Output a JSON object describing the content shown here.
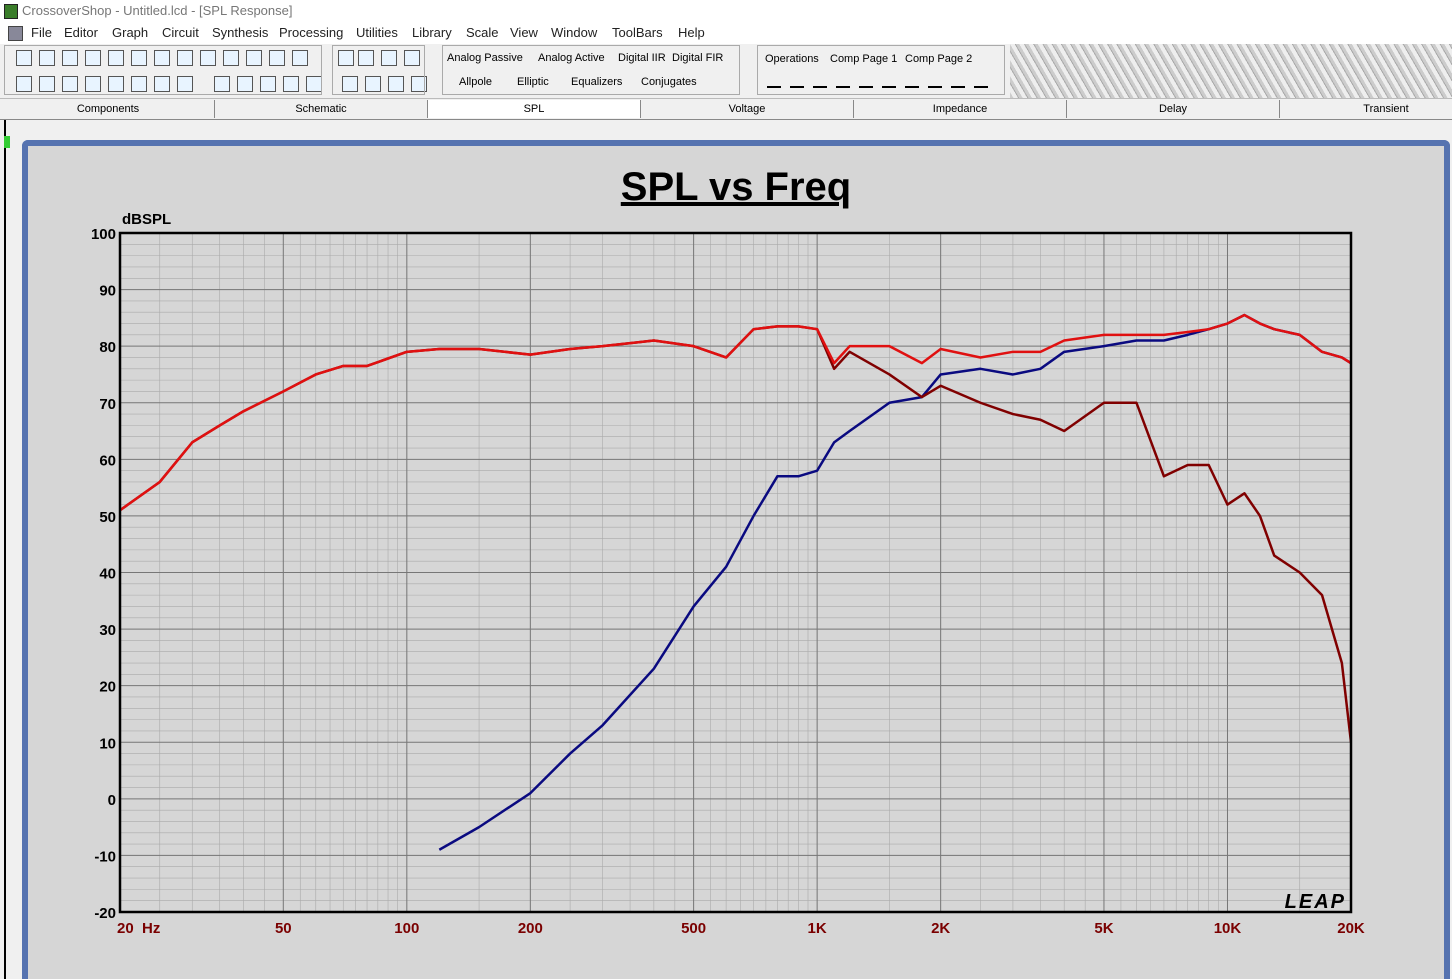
{
  "window": {
    "title": "CrossoverShop - Untitled.lcd - [SPL Response]",
    "menu": [
      "File",
      "Editor",
      "Graph",
      "Circuit",
      "Synthesis",
      "Processing",
      "Utilities",
      "Library",
      "Scale",
      "View",
      "Window",
      "ToolBars",
      "Help"
    ],
    "toolbar_tabs_top": [
      "Analog Passive",
      "Analog Active",
      "Digital IIR",
      "Digital FIR"
    ],
    "toolbar_tabs_bottom": [
      "Allpole",
      "Elliptic",
      "Equalizers",
      "Conjugates"
    ],
    "comp_tabs": [
      "Operations",
      "Comp Page 1",
      "Comp Page 2"
    ],
    "view_tabs": [
      "Components",
      "Schematic",
      "SPL",
      "Voltage",
      "Impedance",
      "Delay",
      "Transient"
    ]
  },
  "chart_data": {
    "type": "line",
    "title": "SPL vs Freq",
    "y_label": "dBSPL",
    "logo": "LEAP",
    "x_log": true,
    "grid": true,
    "x": [
      20,
      25,
      30,
      35,
      40,
      50,
      60,
      70,
      80,
      100,
      120,
      150,
      200,
      250,
      300,
      400,
      500,
      600,
      700,
      800,
      900,
      1000,
      1100,
      1200,
      1500,
      1800,
      2000,
      2500,
      3000,
      3500,
      4000,
      5000,
      6000,
      7000,
      8000,
      9000,
      10000,
      11000,
      12000,
      13000,
      15000,
      17000,
      19000,
      20000
    ],
    "series": [
      {
        "color": "#0a0a80",
        "values": [
          null,
          null,
          null,
          null,
          null,
          null,
          null,
          null,
          null,
          null,
          -9,
          -5,
          1,
          8,
          13,
          23,
          34,
          41,
          50,
          57,
          57,
          58,
          63,
          65,
          70,
          71,
          75,
          76,
          75,
          76,
          79,
          80,
          81,
          81,
          82,
          83,
          84,
          85.5,
          84,
          83,
          82,
          79,
          78,
          77
        ]
      },
      {
        "color": "#800000",
        "values": [
          51,
          56,
          63,
          66,
          68.5,
          72,
          75,
          76.5,
          76.5,
          79,
          79.5,
          79.5,
          78.5,
          79.5,
          80,
          81,
          80,
          78,
          83,
          83.5,
          83.5,
          83,
          76,
          79,
          75,
          71,
          73,
          70,
          68,
          67,
          65,
          70,
          70,
          57,
          59,
          59,
          52,
          54,
          50,
          43,
          40,
          36,
          24,
          10
        ]
      },
      {
        "color": "#e01010",
        "values": [
          51,
          56,
          63,
          66,
          68.5,
          72,
          75,
          76.5,
          76.5,
          79,
          79.5,
          79.5,
          78.5,
          79.5,
          80,
          81,
          80,
          78,
          83,
          83.5,
          83.5,
          83,
          77,
          80,
          80,
          77,
          79.5,
          78,
          79,
          79,
          81,
          82,
          82,
          82,
          82.5,
          83,
          84,
          85.5,
          84,
          83,
          82,
          79,
          78,
          77
        ]
      }
    ],
    "xlim": [
      20,
      20000
    ],
    "xticks": [
      {
        "value": 20,
        "label": "20  Hz"
      },
      50,
      100,
      200,
      500,
      {
        "value": 1000,
        "label": "1K"
      },
      {
        "value": 2000,
        "label": "2K"
      },
      {
        "value": 5000,
        "label": "5K"
      },
      {
        "value": 10000,
        "label": "10K"
      },
      {
        "value": 20000,
        "label": "20K"
      }
    ],
    "ylim": [
      -20,
      100
    ],
    "yticks": [
      -20,
      -10,
      0,
      10,
      20,
      30,
      40,
      50,
      60,
      70,
      80,
      90,
      100
    ]
  }
}
